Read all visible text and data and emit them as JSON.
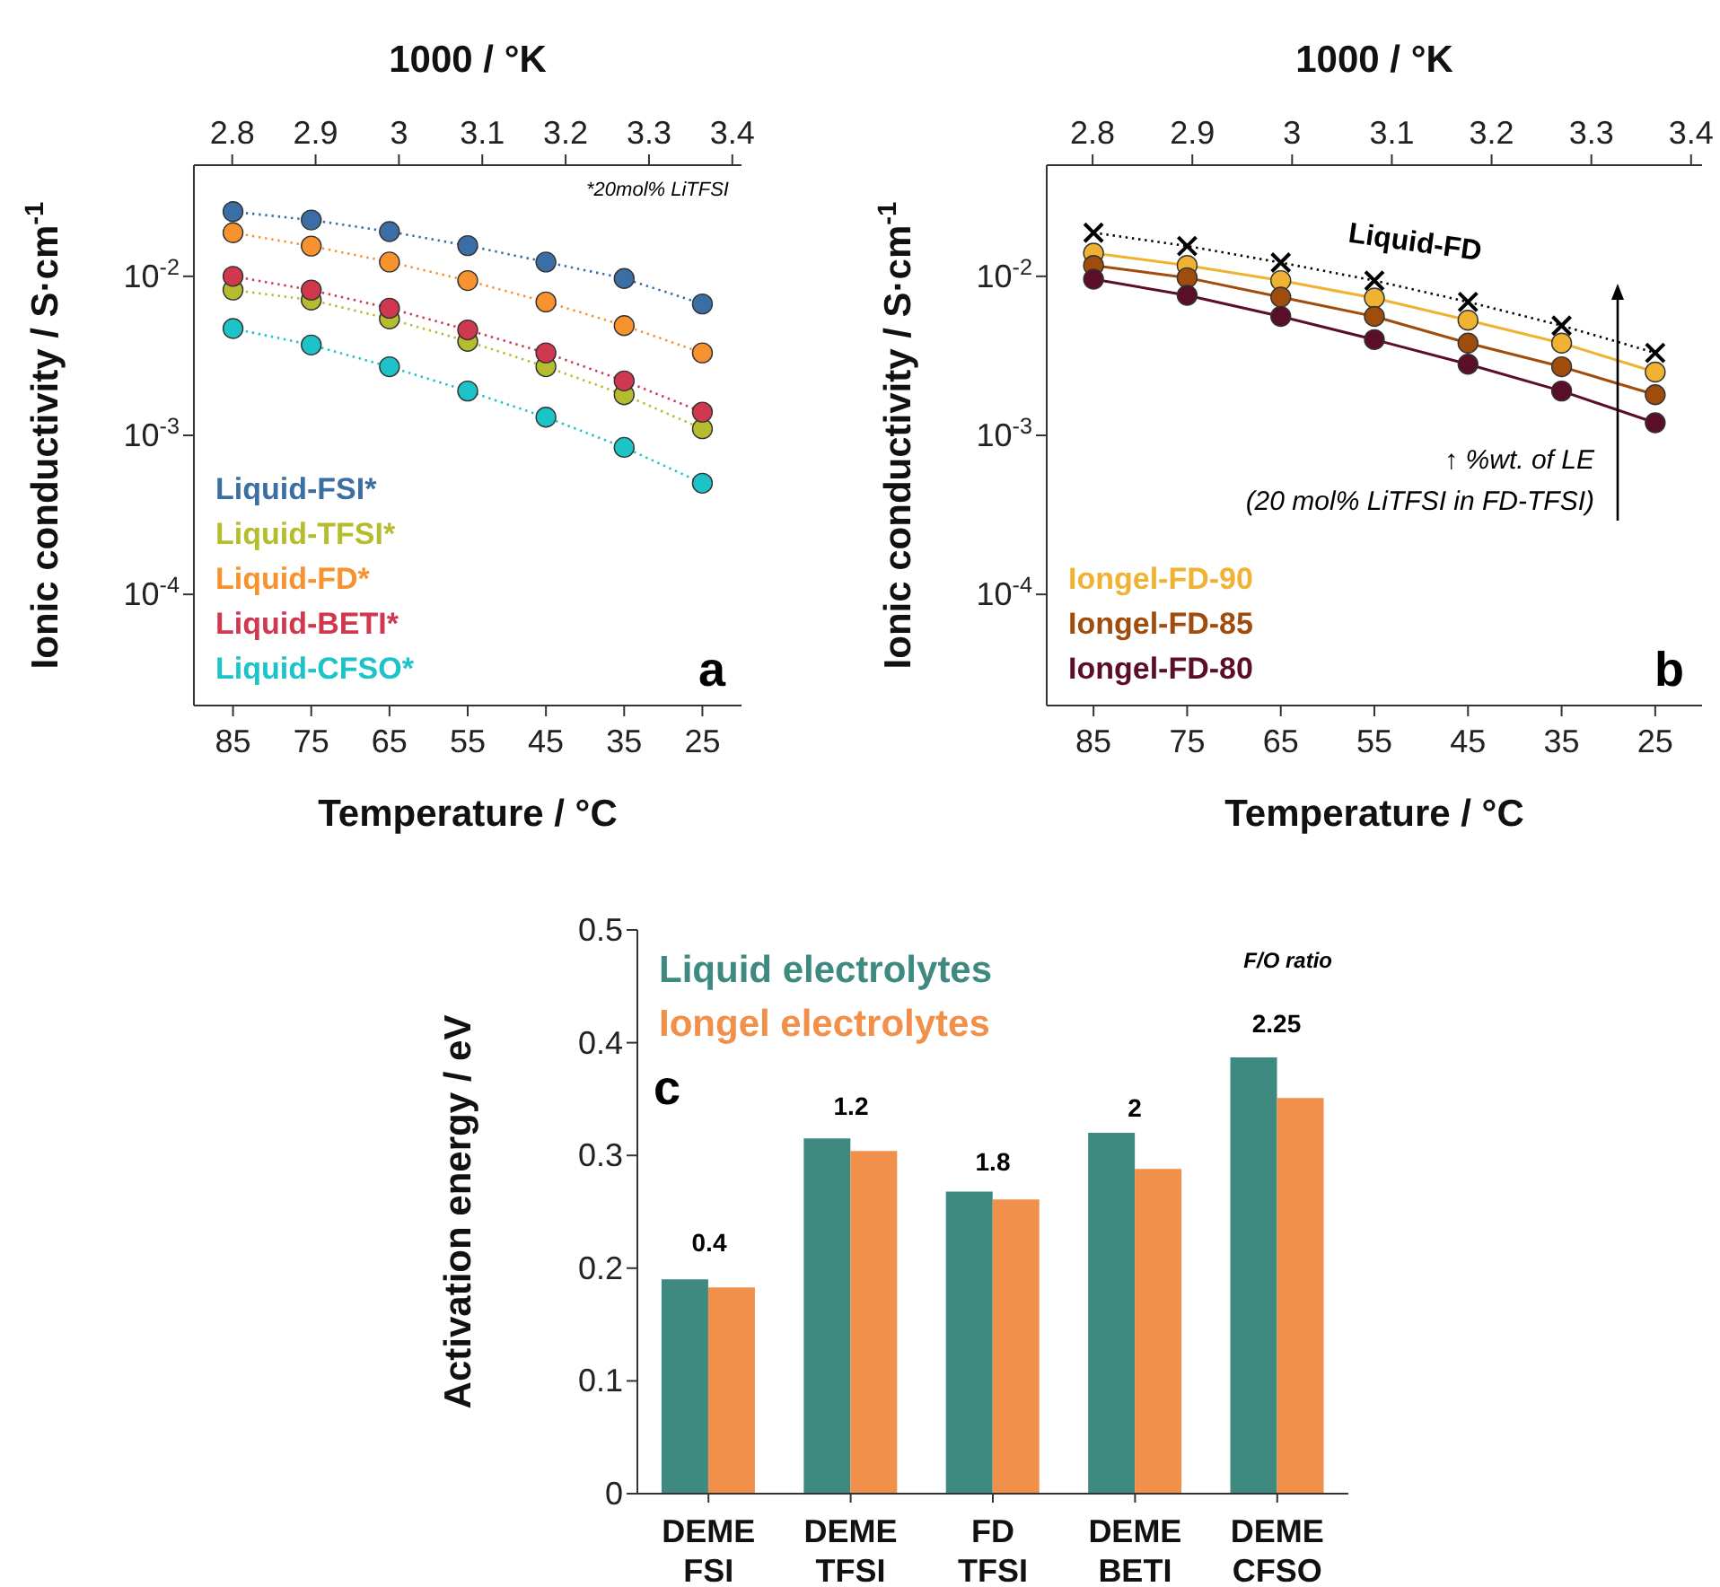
{
  "chart_data": [
    {
      "type": "line",
      "x": [
        85,
        75,
        65,
        55,
        45,
        35,
        25
      ],
      "xlim": [
        90,
        20
      ],
      "xticks": [
        85,
        75,
        65,
        55,
        45,
        35,
        25
      ],
      "x2lim": [
        2.754,
        3.411
      ],
      "x2ticks": [
        2.8,
        2.9,
        3,
        3.1,
        3.2,
        3.3,
        3.4
      ],
      "xlabel": "Temperature / °C",
      "x2label": "1000 / °K",
      "ylabel": "Ionic conductivity / S·cm$^{-1}$",
      "log": true,
      "ylim": [
        2e-05,
        0.05
      ],
      "yticks": [
        {
          "value": 0.0001,
          "label": "10$^{-4}$"
        },
        {
          "value": 0.001,
          "label": "10$^{-3}$"
        },
        {
          "value": 0.01,
          "label": "10$^{-2}$"
        }
      ],
      "marker": "circle",
      "line_style": "dotted",
      "legend": "bottom left",
      "series": [
        {
          "name": "Liquid-FSI*",
          "color": "#3a6ea5",
          "values": [
            0.0255,
            0.0226,
            0.0191,
            0.0156,
            0.0123,
            0.0097,
            0.0067
          ]
        },
        {
          "name": "Liquid-TFSI*",
          "color": "#b5bd2f",
          "values": [
            0.0082,
            0.0071,
            0.0054,
            0.0039,
            0.0027,
            0.0018,
            0.0011
          ]
        },
        {
          "name": "Liquid-FD*",
          "color": "#f7922f",
          "values": [
            0.0188,
            0.0155,
            0.0123,
            0.0094,
            0.0069,
            0.0049,
            0.0033
          ]
        },
        {
          "name": "Liquid-BETI*",
          "color": "#d0384f",
          "values": [
            0.01,
            0.0082,
            0.0063,
            0.0046,
            0.0033,
            0.0022,
            0.0014
          ]
        },
        {
          "name": "Liquid-CFSO*",
          "color": "#1cc4c8",
          "values": [
            0.0047,
            0.0037,
            0.0027,
            0.0019,
            0.0013,
            0.00084,
            0.0005
          ]
        }
      ],
      "annotations": [
        "*20mol% LiTFSI",
        "a"
      ]
    },
    {
      "type": "line",
      "x": [
        85,
        75,
        65,
        55,
        45,
        35,
        25
      ],
      "xlim": [
        90,
        20
      ],
      "xticks": [
        85,
        75,
        65,
        55,
        45,
        35,
        25
      ],
      "x2lim": [
        2.754,
        3.411
      ],
      "x2ticks": [
        2.8,
        2.9,
        3,
        3.1,
        3.2,
        3.3,
        3.4
      ],
      "xlabel": "Temperature / °C",
      "x2label": "1000 / °K",
      "ylabel": "Ionic conductivity / S·cm$^{-1}$",
      "log": true,
      "ylim": [
        2e-05,
        0.05
      ],
      "yticks": [
        {
          "value": 0.0001,
          "label": "10$^{-4}$"
        },
        {
          "value": 0.001,
          "label": "10$^{-3}$"
        },
        {
          "value": 0.01,
          "label": "10$^{-2}$"
        }
      ],
      "marker": "circle",
      "line_style": "solid",
      "legend": "bottom left",
      "series": [
        {
          "color": "#000000",
          "marker": "cross",
          "line_style": "dotted",
          "values": [
            0.0188,
            0.0155,
            0.0122,
            0.0094,
            0.0069,
            0.0049,
            0.0033
          ]
        },
        {
          "name": "Iongel-FD-90",
          "color": "#f0b232",
          "values": [
            0.014,
            0.0117,
            0.0094,
            0.0073,
            0.0053,
            0.0038,
            0.0025
          ]
        },
        {
          "name": "Iongel-FD-85",
          "color": "#a04c0c",
          "values": [
            0.0117,
            0.0098,
            0.0074,
            0.0056,
            0.0038,
            0.0027,
            0.0018
          ]
        },
        {
          "name": "Iongel-FD-80",
          "color": "#5a0e2a",
          "values": [
            0.0096,
            0.0076,
            0.0056,
            0.004,
            0.0028,
            0.0019,
            0.0012
          ]
        }
      ],
      "annotations": [
        "Liquid-FD",
        "↑ %wt. of LE\n(20 mol% LiTFSI in FD-TFSI)",
        "b"
      ]
    },
    {
      "type": "bar",
      "categories": [
        "DEME FSI",
        "DEME TFSI",
        "FD TFSI",
        "DEME BETI",
        "DEME CFSO"
      ],
      "ylabel": "Activation energy / eV",
      "ylim": [
        0,
        0.5
      ],
      "yticks": [
        0,
        0.1,
        0.2,
        0.3,
        0.4,
        0.5
      ],
      "legend": "top left",
      "series": [
        {
          "name": "Liquid electrolytes",
          "color": "#3f8a80",
          "values": [
            0.19,
            0.315,
            0.268,
            0.32,
            0.387
          ]
        },
        {
          "name": "Iongel electrolytes",
          "color": "#f0904a",
          "values": [
            0.183,
            0.304,
            0.261,
            0.288,
            0.351
          ]
        }
      ],
      "annotations": [
        "F/O ratio",
        "c",
        "0.4",
        "1.2",
        "1.8",
        "2",
        "2.25"
      ]
    }
  ]
}
